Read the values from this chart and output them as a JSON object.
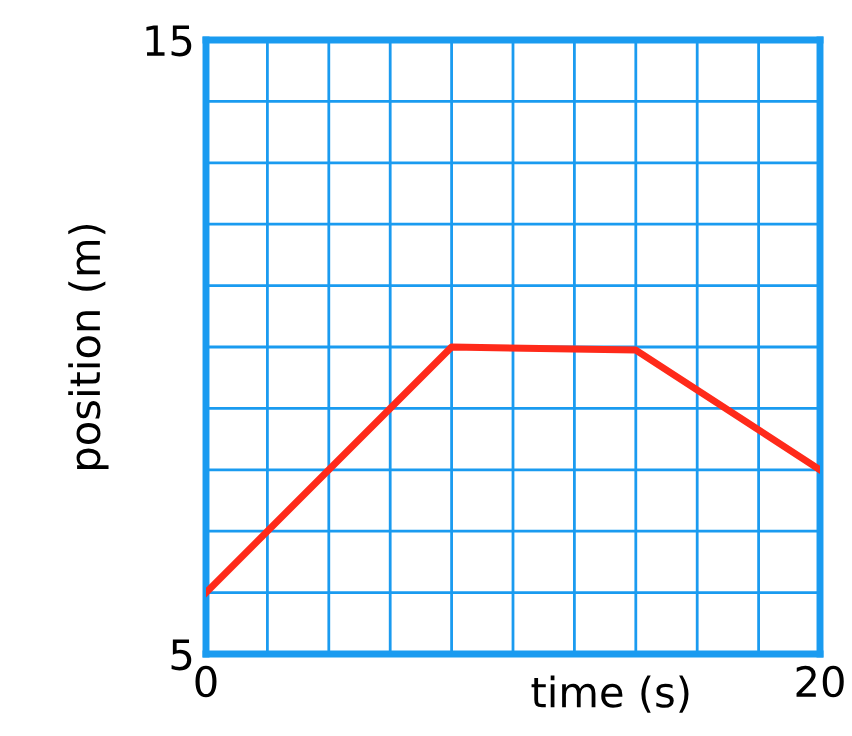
{
  "chart_data": {
    "type": "line",
    "xlabel": "time (s)",
    "ylabel": "position (m)",
    "x": [
      0,
      8,
      14,
      20
    ],
    "series": [
      {
        "color": "#ff2a1a",
        "values": [
          6,
          10,
          9.95,
          8
        ]
      }
    ],
    "xlim": [
      0,
      20
    ],
    "ylim": [
      5,
      15
    ],
    "xticks": [
      0,
      {
        "value": 2,
        "label": null
      },
      {
        "value": 4,
        "label": null
      },
      {
        "value": 6,
        "label": null
      },
      {
        "value": 8,
        "label": null
      },
      {
        "value": 10,
        "label": null
      },
      {
        "value": 12,
        "label": null
      },
      {
        "value": 14,
        "label": null
      },
      {
        "value": 16,
        "label": null
      },
      {
        "value": 18,
        "label": null
      },
      20
    ],
    "yticks": [
      5,
      {
        "value": 6,
        "label": null
      },
      {
        "value": 7,
        "label": null
      },
      {
        "value": 8,
        "label": null
      },
      {
        "value": 9,
        "label": null
      },
      {
        "value": 10,
        "label": null
      },
      {
        "value": 11,
        "label": null
      },
      {
        "value": 12,
        "label": null
      },
      {
        "value": 13,
        "label": null
      },
      {
        "value": 14,
        "label": null
      },
      15
    ],
    "grid": true,
    "marker": "none",
    "line_style": "solid"
  }
}
